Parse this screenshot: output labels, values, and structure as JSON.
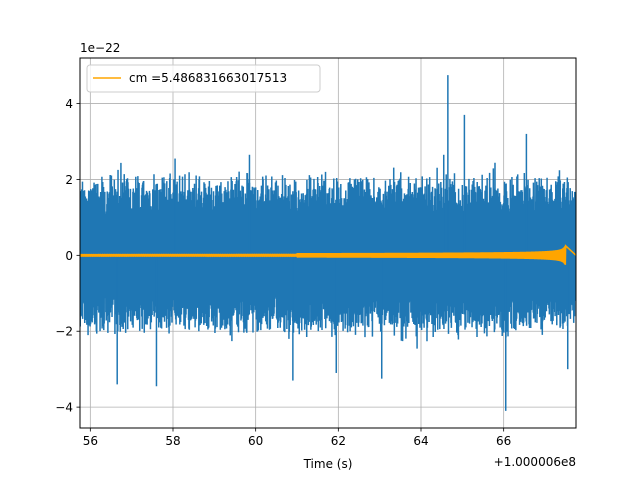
{
  "chart_data": {
    "type": "line",
    "title": "",
    "xlabel": "Time (s)",
    "ylabel": "",
    "x_offset_label": "+1.000006e8",
    "y_scale_label": "1e−22",
    "xlim": [
      55.75,
      67.75
    ],
    "ylim": [
      -4.55,
      5.2
    ],
    "x_ticks": [
      56,
      58,
      60,
      62,
      64,
      66
    ],
    "x_tick_labels": [
      "56",
      "58",
      "60",
      "62",
      "64",
      "66"
    ],
    "y_ticks": [
      -4,
      -2,
      0,
      2,
      4
    ],
    "y_tick_labels": [
      "−4",
      "−2",
      "0",
      "2",
      "4"
    ],
    "grid": true,
    "legend_position": "upper-left",
    "series": [
      {
        "name": "",
        "color": "#1f77b4",
        "style": "dense noise",
        "typical_amplitude": 2.2,
        "peaks": [
          {
            "x": 56.65,
            "y": -3.4
          },
          {
            "x": 57.6,
            "y": -3.45
          },
          {
            "x": 58.05,
            "y": 2.55
          },
          {
            "x": 59.85,
            "y": 2.65
          },
          {
            "x": 60.9,
            "y": -3.3
          },
          {
            "x": 61.95,
            "y": -3.1
          },
          {
            "x": 63.05,
            "y": -3.25
          },
          {
            "x": 64.55,
            "y": 2.65
          },
          {
            "x": 64.65,
            "y": 4.75
          },
          {
            "x": 65.05,
            "y": 3.7
          },
          {
            "x": 66.05,
            "y": -4.1
          },
          {
            "x": 66.55,
            "y": 3.2
          },
          {
            "x": 67.55,
            "y": -3.0
          }
        ]
      },
      {
        "name": "cm =5.486831663017513",
        "color": "#ffa500",
        "style": "chirp",
        "x_start": 55.75,
        "x_end": 67.5,
        "peak_amplitude": 0.25
      }
    ]
  }
}
